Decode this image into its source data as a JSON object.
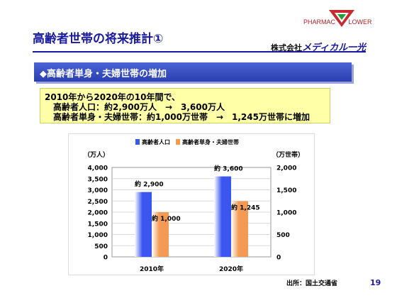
{
  "slide": {
    "title": "高齢者世帯の将来推計①",
    "subheading": "◆高齢者単身・夫婦世帯の増加",
    "summary_lines": [
      "2010年から2020年の10年間で、",
      "高齢者人口：約2,900万人　→　3,600万人",
      "高齢者単身・夫婦世帯：約1,000万世帯　→　1,245万世帯に増加"
    ],
    "source": "出所：国土交通省",
    "page_number": "19"
  },
  "logo": {
    "top_text": "PHARMAC",
    "top_text2": "LOWER",
    "company_prefix": "株式会社",
    "company_name": "メディカル一光"
  },
  "chart_data": {
    "type": "bar",
    "categories": [
      "2010年",
      "2020年"
    ],
    "series": [
      {
        "name": "高齢者人口",
        "values": [
          2900,
          3600
        ],
        "axis": "left",
        "color": "#3b56f0",
        "labels": [
          "約 2,900",
          "約 3,600"
        ]
      },
      {
        "name": "高齢者単身・夫婦世帯",
        "values": [
          1000,
          1245
        ],
        "axis": "right",
        "color": "#f39a55",
        "labels": [
          "約 1,000",
          "約 1,245"
        ]
      }
    ],
    "y_left": {
      "label": "（万人）",
      "min": 0,
      "max": 4000,
      "ticks": [
        "0",
        "500",
        "1,000",
        "1,500",
        "2,000",
        "2,500",
        "3,000",
        "3,500",
        "4,000"
      ]
    },
    "y_right": {
      "label": "（万世帯）",
      "min": 0,
      "max": 2000,
      "ticks": [
        "0",
        "500",
        "1,000",
        "1,500",
        "2,000"
      ]
    },
    "legend_position": "top"
  }
}
